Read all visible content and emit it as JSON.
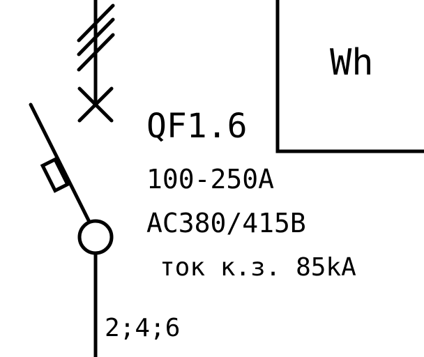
{
  "meter": {
    "label": "Wh"
  },
  "breaker": {
    "designation": "QF1.6",
    "current_range": "100-250A",
    "voltage": "AC380/415B",
    "short_circuit": "ток к.з. 85kA",
    "poles": "2;4;6"
  },
  "colors": {
    "line": "#000000",
    "background": "#ffffff"
  }
}
